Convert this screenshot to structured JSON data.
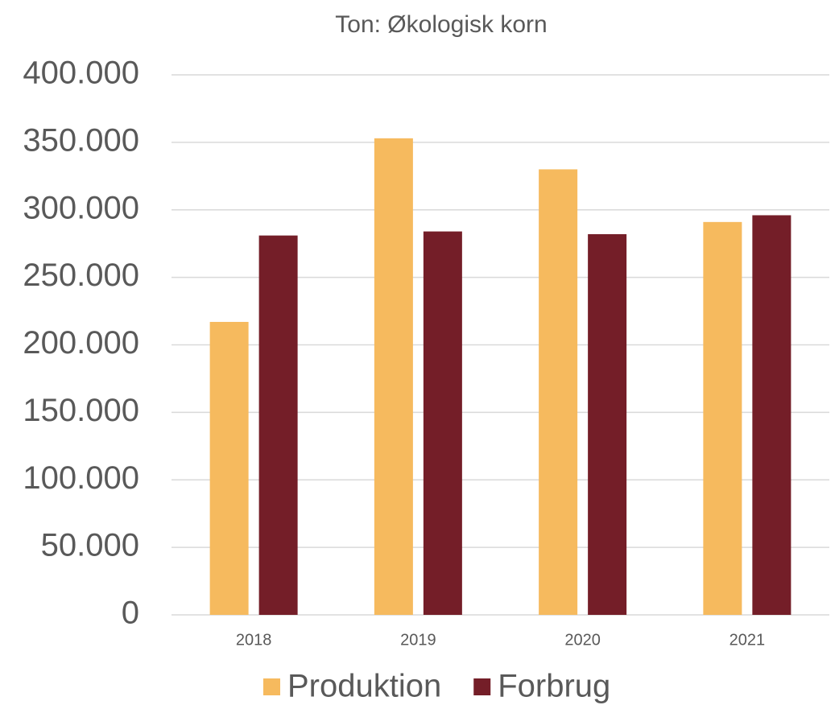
{
  "chart_data": {
    "type": "bar",
    "title": "Ton: Økologisk korn",
    "categories": [
      "2018",
      "2019",
      "2020",
      "2021"
    ],
    "series": [
      {
        "name": "Produktion",
        "color": "#F6BA5E",
        "values": [
          217000,
          353000,
          330000,
          291000
        ]
      },
      {
        "name": "Forbrug",
        "color": "#741E28",
        "values": [
          281000,
          284000,
          282000,
          296000
        ]
      }
    ],
    "ylim": [
      0,
      400000
    ],
    "yticks": [
      0,
      {
        "value": 50000,
        "label": "50.000"
      },
      {
        "value": 100000,
        "label": "100.000"
      },
      {
        "value": 150000,
        "label": "150.000"
      },
      {
        "value": 200000,
        "label": "200.000"
      },
      {
        "value": 250000,
        "label": "250.000"
      },
      {
        "value": 300000,
        "label": "300.000"
      },
      {
        "value": 350000,
        "label": "350.000"
      },
      {
        "value": 400000,
        "label": "400.000"
      }
    ],
    "grid": true,
    "legend": "bottom"
  }
}
